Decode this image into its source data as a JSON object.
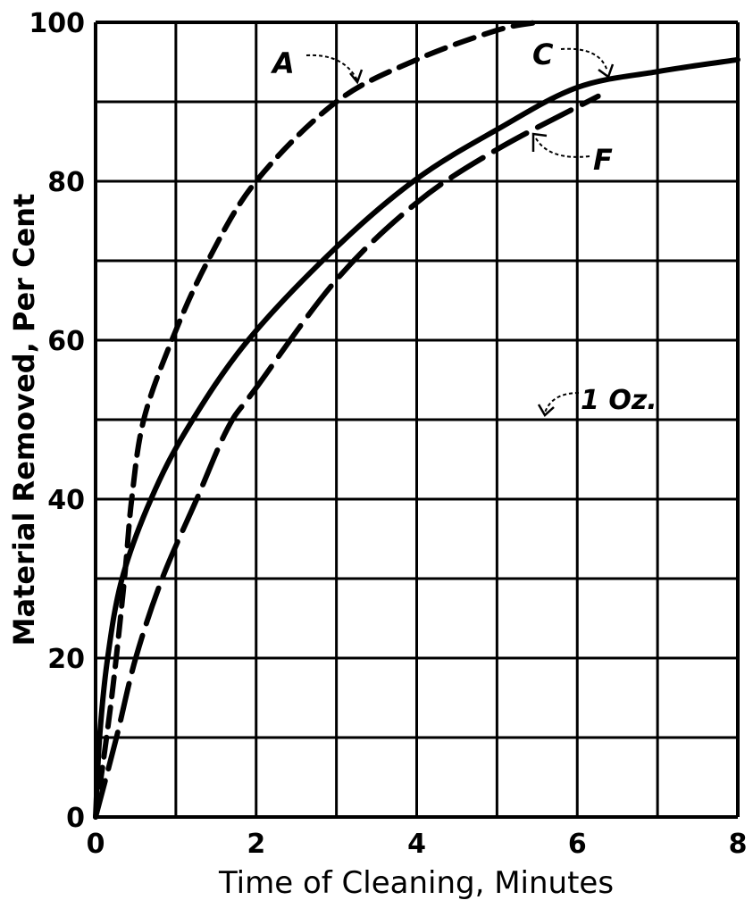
{
  "chart_data": {
    "type": "line",
    "title": "",
    "xlabel": "Time of Cleaning, Minutes",
    "ylabel": "Material Removed, Per Cent",
    "xlim": [
      0,
      8
    ],
    "ylim": [
      0,
      100
    ],
    "grid": true,
    "x_ticks": [
      0,
      2,
      4,
      6,
      8
    ],
    "y_ticks": [
      0,
      20,
      40,
      60,
      80,
      100
    ],
    "x_tick_labels": [
      "0",
      "2",
      "4",
      "6",
      "8"
    ],
    "y_tick_labels": [
      "0",
      "20",
      "40",
      "60",
      "80",
      "100"
    ],
    "series": [
      {
        "name": "A",
        "style": "short-dash",
        "points": [
          [
            0,
            0
          ],
          [
            0.2,
            15
          ],
          [
            0.36,
            30
          ],
          [
            0.45,
            40
          ],
          [
            0.6,
            50
          ],
          [
            0.95,
            60
          ],
          [
            1.4,
            70
          ],
          [
            2,
            80
          ],
          [
            3,
            90
          ],
          [
            4,
            95.3
          ],
          [
            5,
            99
          ],
          [
            5.5,
            100
          ]
        ]
      },
      {
        "name": "C",
        "style": "solid",
        "points": [
          [
            0,
            0
          ],
          [
            0.05,
            10
          ],
          [
            0.15,
            20
          ],
          [
            0.33,
            30
          ],
          [
            0.69,
            40
          ],
          [
            1.15,
            49
          ],
          [
            1.9,
            60
          ],
          [
            3,
            71.7
          ],
          [
            4,
            80.3
          ],
          [
            5,
            86.5
          ],
          [
            6,
            91.8
          ],
          [
            7,
            93.8
          ],
          [
            8,
            95.3
          ]
        ]
      },
      {
        "name": "F",
        "style": "long-dash",
        "points": [
          [
            0,
            0
          ],
          [
            0.26,
            10
          ],
          [
            0.5,
            20
          ],
          [
            0.83,
            30
          ],
          [
            1.26,
            40
          ],
          [
            1.65,
            49
          ],
          [
            2,
            54
          ],
          [
            3,
            67.6
          ],
          [
            4,
            77.3
          ],
          [
            5,
            84
          ],
          [
            6.26,
            90.7
          ]
        ]
      }
    ],
    "annotations": [
      {
        "text": "A",
        "target_series": "A"
      },
      {
        "text": "C",
        "target_series": "C"
      },
      {
        "text": "F",
        "target_series": "F"
      },
      {
        "text": "1 Oz.",
        "target": "y=50 line"
      }
    ],
    "legend": "none"
  }
}
